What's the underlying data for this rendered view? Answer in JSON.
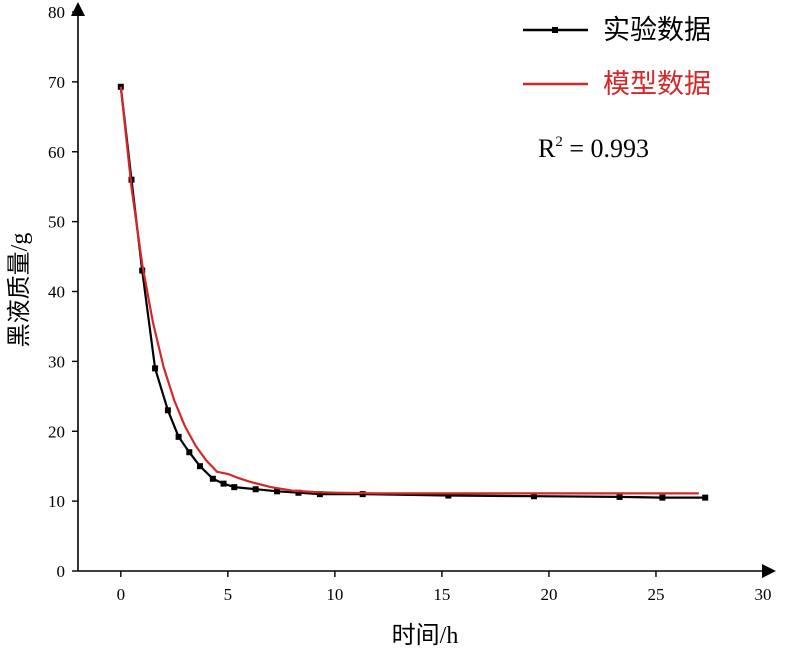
{
  "chart_data": {
    "type": "line",
    "xlabel": "时间/h",
    "ylabel": "黑液质量/g",
    "xlim": [
      -2,
      30
    ],
    "ylim": [
      0,
      80
    ],
    "xticks": [
      0,
      5,
      10,
      15,
      20,
      25,
      30
    ],
    "yticks": [
      0,
      10,
      20,
      30,
      40,
      50,
      60,
      70,
      80
    ],
    "grid": false,
    "legend_position": "top-right",
    "annotation": {
      "base": "R",
      "sup": "2",
      "rest": " = 0.993"
    },
    "series": [
      {
        "name": "实验数据",
        "color": "#000000",
        "marker": "square",
        "x": [
          0,
          0.5,
          1,
          1.6,
          2.2,
          2.7,
          3.2,
          3.7,
          4.3,
          4.8,
          5.3,
          6.3,
          7.3,
          8.3,
          9.3,
          11.3,
          15.3,
          19.3,
          23.3,
          25.3,
          27.3
        ],
        "y": [
          69.3,
          56,
          43,
          29,
          23,
          19.2,
          17,
          15,
          13.2,
          12.5,
          12,
          11.7,
          11.4,
          11.2,
          11,
          11,
          10.8,
          10.7,
          10.6,
          10.5,
          10.5
        ]
      },
      {
        "name": "模型数据",
        "color": "#d62728",
        "marker": "none",
        "x": [
          0,
          0.5,
          1,
          1.5,
          2,
          2.5,
          3,
          3.5,
          4,
          4.5,
          5,
          5.5,
          6,
          7,
          8,
          9,
          10,
          12,
          15,
          20,
          25,
          27
        ],
        "y": [
          69.3,
          54.9,
          43.9,
          35.6,
          29.2,
          24.4,
          20.7,
          17.9,
          15.8,
          14.2,
          13.9,
          13.3,
          12.8,
          12.0,
          11.5,
          11.3,
          11.2,
          11.1,
          11.1,
          11.1,
          11.1,
          11.1
        ]
      }
    ]
  }
}
